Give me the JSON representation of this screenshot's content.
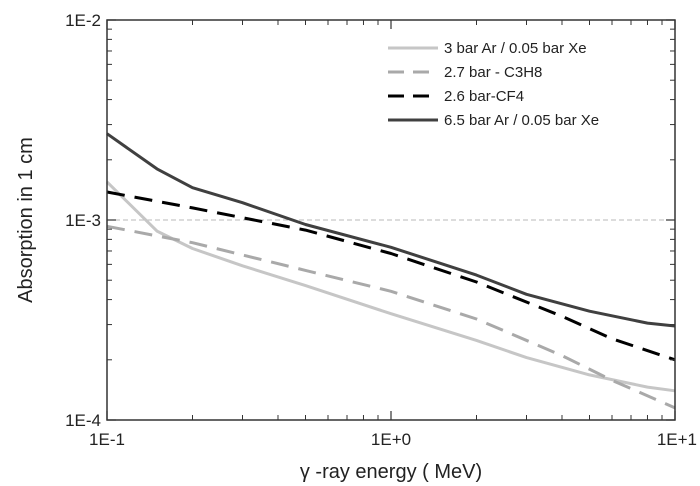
{
  "chart_data": {
    "type": "line",
    "xlabel": "γ -ray energy  ( MeV)",
    "ylabel": "Absorption in 1 cm",
    "xscale": "log",
    "yscale": "log",
    "xlim": [
      0.1,
      10
    ],
    "ylim": [
      0.0001,
      0.01
    ],
    "x_ticks": [
      "1E-1",
      "1E+0",
      "1E+1"
    ],
    "y_ticks": [
      "1E-4",
      "1E-3",
      "1E-2"
    ],
    "grid": "dashed horizontal line at 1E-3",
    "legend_position": "top-right",
    "series": [
      {
        "name": "3 bar Ar / 0.05 bar Xe",
        "color": "#c6c6c6",
        "dash": "solid",
        "points": [
          [
            0.1,
            0.00155
          ],
          [
            0.15,
            0.00088
          ],
          [
            0.2,
            0.00072
          ],
          [
            0.3,
            0.00059
          ],
          [
            0.5,
            0.00047
          ],
          [
            1.0,
            0.00034
          ],
          [
            2.0,
            0.00025
          ],
          [
            3.0,
            0.000205
          ],
          [
            5.0,
            0.000168
          ],
          [
            8.0,
            0.000146
          ],
          [
            10.0,
            0.00014
          ]
        ]
      },
      {
        "name": "2.7 bar - C3H8",
        "color": "#a9a9a9",
        "dash": "dashed",
        "points": [
          [
            0.1,
            0.00093
          ],
          [
            0.2,
            0.00077
          ],
          [
            0.5,
            0.00056
          ],
          [
            1.0,
            0.00044
          ],
          [
            2.0,
            0.00032
          ],
          [
            4.0,
            0.00021
          ],
          [
            6.0,
            0.000158
          ],
          [
            10.0,
            0.000115
          ]
        ]
      },
      {
        "name": "2.6 bar-CF4",
        "color": "#000000",
        "dash": "dashed",
        "points": [
          [
            0.1,
            0.00138
          ],
          [
            0.2,
            0.00115
          ],
          [
            0.5,
            0.00089
          ],
          [
            1.0,
            0.00068
          ],
          [
            2.0,
            0.00049
          ],
          [
            4.0,
            0.00033
          ],
          [
            6.0,
            0.000255
          ],
          [
            10.0,
            0.0002
          ]
        ]
      },
      {
        "name": "6.5 bar Ar / 0.05 bar Xe",
        "color": "#404040",
        "dash": "solid",
        "points": [
          [
            0.1,
            0.0027
          ],
          [
            0.15,
            0.0018
          ],
          [
            0.2,
            0.00145
          ],
          [
            0.3,
            0.00122
          ],
          [
            0.5,
            0.00095
          ],
          [
            1.0,
            0.00073
          ],
          [
            2.0,
            0.00053
          ],
          [
            3.0,
            0.000425
          ],
          [
            5.0,
            0.00035
          ],
          [
            8.0,
            0.000305
          ],
          [
            10.0,
            0.000295
          ]
        ]
      }
    ]
  }
}
